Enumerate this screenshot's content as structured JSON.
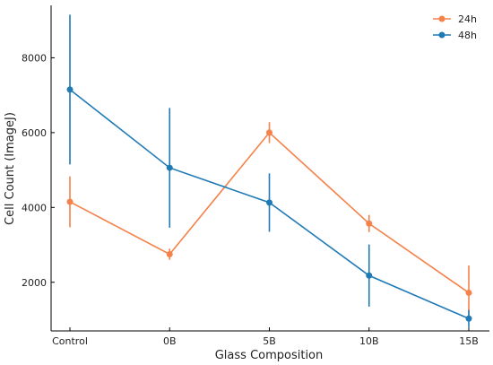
{
  "chart_data": {
    "type": "line",
    "title": "",
    "xlabel": "Glass Composition",
    "ylabel": "Cell Count (ImageJ)",
    "categories": [
      "Control",
      "0B",
      "5B",
      "10B",
      "15B"
    ],
    "yticks": [
      2000,
      4000,
      6000,
      8000
    ],
    "ylim": [
      700,
      9400
    ],
    "grid": false,
    "legend_position": "top-right",
    "series": [
      {
        "name": "24h",
        "color": "#F4824A",
        "values": [
          4150,
          2750,
          6000,
          3570,
          1720
        ],
        "errors": [
          680,
          150,
          280,
          230,
          730
        ]
      },
      {
        "name": "48h",
        "color": "#1F7AB6",
        "values": [
          7150,
          5060,
          4130,
          2180,
          1030
        ],
        "errors": [
          2000,
          1600,
          780,
          830,
          230
        ]
      }
    ]
  }
}
